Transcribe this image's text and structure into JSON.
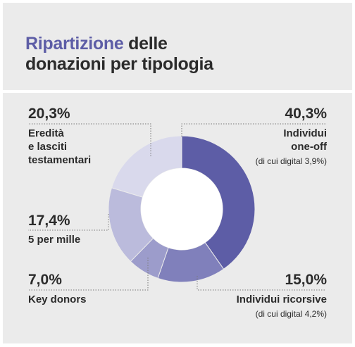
{
  "title": {
    "accent": "Ripartizione",
    "line1_rest": " delle",
    "line2": "donazioni per tipologia"
  },
  "chart_data": {
    "type": "pie",
    "donut": true,
    "title": "Ripartizione delle donazioni per tipologia",
    "slices": [
      {
        "label": "Individui one-off",
        "value": 40.3,
        "value_label": "40,3%",
        "note": "(di cui digital 3,9%)",
        "color": "#5d5da6"
      },
      {
        "label": "Individui ricorsive",
        "value": 15.0,
        "value_label": "15,0%",
        "note": "(di cui digital 4,2%)",
        "color": "#8080bb"
      },
      {
        "label": "Key donors",
        "value": 7.0,
        "value_label": "7,0%",
        "note": "",
        "color": "#9c9ccb"
      },
      {
        "label": "5 per mille",
        "value": 17.4,
        "value_label": "17,4%",
        "note": "",
        "color": "#bbbbdc"
      },
      {
        "label": "Eredità e lasciti testamentari",
        "value": 20.3,
        "value_label": "20,3%",
        "note": "",
        "color": "#d9d9ec"
      }
    ]
  },
  "labels": {
    "one_off": {
      "pct": "40,3%",
      "line1": "Individui",
      "line2": "one-off",
      "note": "(di cui digital 3,9%)"
    },
    "ricorsive": {
      "pct": "15,0%",
      "line1": "Individui ricorsive",
      "note": "(di cui digital 4,2%)"
    },
    "key": {
      "pct": "7,0%",
      "line1": "Key donors"
    },
    "mille": {
      "pct": "17,4%",
      "line1": "5 per mille"
    },
    "eredita": {
      "pct": "20,3%",
      "line1": "Eredità",
      "line2": "e lasciti",
      "line3": "testamentari"
    }
  }
}
